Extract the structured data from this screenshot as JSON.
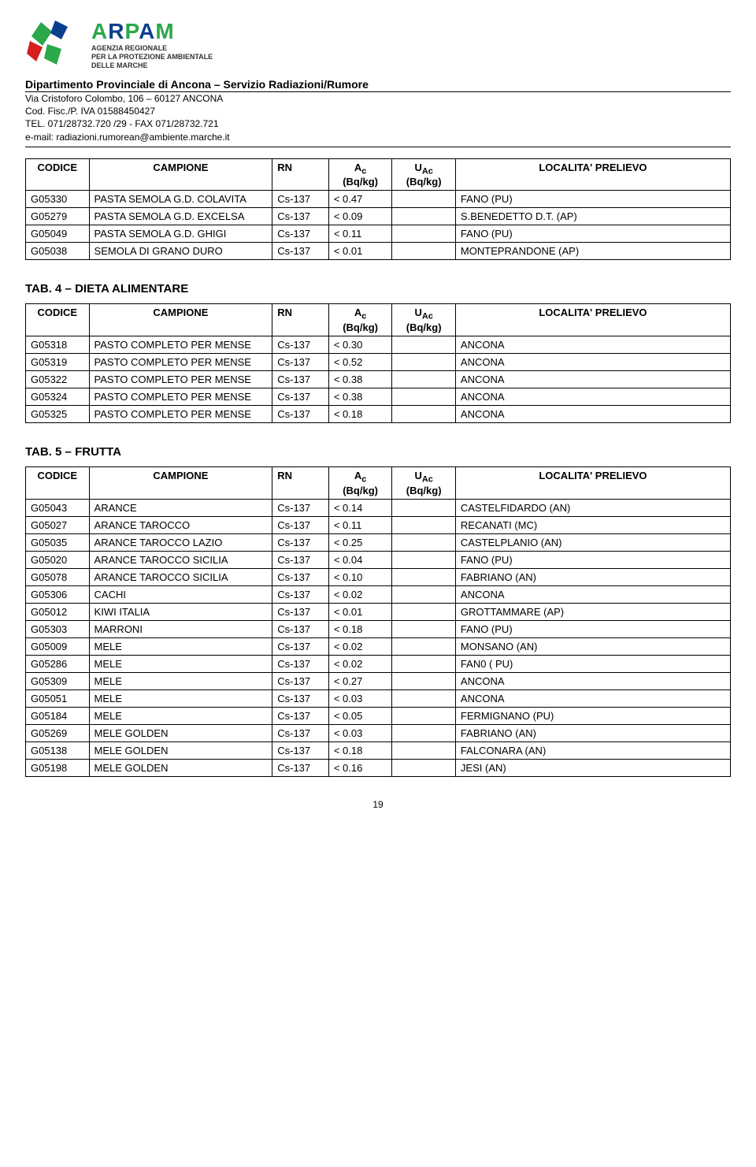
{
  "header": {
    "agency_lines": [
      "AGENZIA REGIONALE",
      "PER LA PROTEZIONE AMBIENTALE",
      "DELLE MARCHE"
    ],
    "dept_line": "Dipartimento Provinciale di Ancona – Servizio Radiazioni/Rumore",
    "contact_lines": [
      "Via Cristoforo Colombo, 106 – 60127 ANCONA",
      "Cod. Fisc./P. IVA 01588450427",
      "TEL. 071/28732.720 /29  -  FAX 071/28732.721",
      "e-mail: radiazioni.rumorean@ambiente.marche.it"
    ]
  },
  "table_headers": {
    "code": "CODICE",
    "campione": "CAMPIONE",
    "rn": "RN",
    "ac": "A",
    "ac_sub": "c",
    "ac_unit": "(Bq/kg)",
    "uac": "U",
    "uac_sub": "Ac",
    "uac_unit": "(Bq/kg)",
    "loc": "LOCALITA' PRELIEVO"
  },
  "table1_rows": [
    {
      "code": "G05330",
      "campione": "PASTA SEMOLA G.D. COLAVITA",
      "rn": "Cs-137",
      "ac": "< 0.47",
      "uac": "",
      "loc": "FANO (PU)"
    },
    {
      "code": "G05279",
      "campione": "PASTA SEMOLA G.D. EXCELSA",
      "rn": "Cs-137",
      "ac": "< 0.09",
      "uac": "",
      "loc": "S.BENEDETTO D.T. (AP)"
    },
    {
      "code": "G05049",
      "campione": "PASTA SEMOLA G.D. GHIGI",
      "rn": "Cs-137",
      "ac": "< 0.11",
      "uac": "",
      "loc": "FANO (PU)"
    },
    {
      "code": "G05038",
      "campione": "SEMOLA DI GRANO DURO",
      "rn": "Cs-137",
      "ac": "< 0.01",
      "uac": "",
      "loc": "MONTEPRANDONE (AP)"
    }
  ],
  "section2_title": "TAB. 4 – DIETA ALIMENTARE",
  "table2_rows": [
    {
      "code": "G05318",
      "campione": "PASTO COMPLETO PER MENSE",
      "rn": "Cs-137",
      "ac": "< 0.30",
      "uac": "",
      "loc": "ANCONA"
    },
    {
      "code": "G05319",
      "campione": "PASTO COMPLETO PER MENSE",
      "rn": "Cs-137",
      "ac": "< 0.52",
      "uac": "",
      "loc": "ANCONA"
    },
    {
      "code": "G05322",
      "campione": "PASTO COMPLETO PER MENSE",
      "rn": "Cs-137",
      "ac": "< 0.38",
      "uac": "",
      "loc": "ANCONA"
    },
    {
      "code": "G05324",
      "campione": "PASTO COMPLETO PER MENSE",
      "rn": "Cs-137",
      "ac": "< 0.38",
      "uac": "",
      "loc": "ANCONA"
    },
    {
      "code": "G05325",
      "campione": "PASTO COMPLETO PER MENSE",
      "rn": "Cs-137",
      "ac": "< 0.18",
      "uac": "",
      "loc": "ANCONA"
    }
  ],
  "section3_title": "TAB. 5 – FRUTTA",
  "table3_rows": [
    {
      "code": "G05043",
      "campione": "ARANCE",
      "rn": "Cs-137",
      "ac": "< 0.14",
      "uac": "",
      "loc": "CASTELFIDARDO (AN)"
    },
    {
      "code": "G05027",
      "campione": "ARANCE TAROCCO",
      "rn": "Cs-137",
      "ac": "< 0.11",
      "uac": "",
      "loc": "RECANATI  (MC)"
    },
    {
      "code": "G05035",
      "campione": "ARANCE TAROCCO LAZIO",
      "rn": "Cs-137",
      "ac": "< 0.25",
      "uac": "",
      "loc": "CASTELPLANIO (AN)"
    },
    {
      "code": "G05020",
      "campione": "ARANCE TAROCCO SICILIA",
      "rn": "Cs-137",
      "ac": "< 0.04",
      "uac": "",
      "loc": "FANO (PU)"
    },
    {
      "code": "G05078",
      "campione": "ARANCE TAROCCO SICILIA",
      "rn": "Cs-137",
      "ac": "< 0.10",
      "uac": "",
      "loc": "FABRIANO (AN)"
    },
    {
      "code": "G05306",
      "campione": "CACHI",
      "rn": "Cs-137",
      "ac": "< 0.02",
      "uac": "",
      "loc": "ANCONA"
    },
    {
      "code": "G05012",
      "campione": "KIWI ITALIA",
      "rn": "Cs-137",
      "ac": "< 0.01",
      "uac": "",
      "loc": "GROTTAMMARE (AP)"
    },
    {
      "code": "G05303",
      "campione": "MARRONI",
      "rn": "Cs-137",
      "ac": "< 0.18",
      "uac": "",
      "loc": "FANO (PU)"
    },
    {
      "code": "G05009",
      "campione": "MELE",
      "rn": "Cs-137",
      "ac": "< 0.02",
      "uac": "",
      "loc": "MONSANO (AN)"
    },
    {
      "code": "G05286",
      "campione": "MELE",
      "rn": "Cs-137",
      "ac": "< 0.02",
      "uac": "",
      "loc": "FAN0 ( PU)"
    },
    {
      "code": "G05309",
      "campione": "MELE",
      "rn": "Cs-137",
      "ac": "< 0.27",
      "uac": "",
      "loc": "ANCONA"
    },
    {
      "code": "G05051",
      "campione": "MELE",
      "rn": "Cs-137",
      "ac": "< 0.03",
      "uac": "",
      "loc": "ANCONA"
    },
    {
      "code": "G05184",
      "campione": "MELE",
      "rn": "Cs-137",
      "ac": "< 0.05",
      "uac": "",
      "loc": "FERMIGNANO (PU)"
    },
    {
      "code": "G05269",
      "campione": "MELE GOLDEN",
      "rn": "Cs-137",
      "ac": "< 0.03",
      "uac": "",
      "loc": "FABRIANO (AN)"
    },
    {
      "code": "G05138",
      "campione": "MELE GOLDEN",
      "rn": "Cs-137",
      "ac": "< 0.18",
      "uac": "",
      "loc": "FALCONARA (AN)"
    },
    {
      "code": "G05198",
      "campione": "MELE GOLDEN",
      "rn": "Cs-137",
      "ac": "< 0.16",
      "uac": "",
      "loc": "JESI (AN)"
    }
  ],
  "page_number": "19"
}
